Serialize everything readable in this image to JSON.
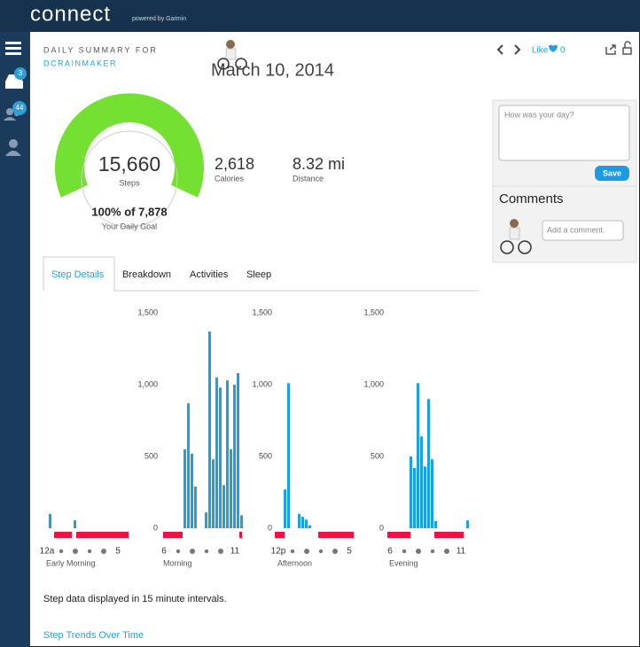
{
  "header": {
    "logo": "connect",
    "tagline": "powered by Garmin"
  },
  "sidebar": {
    "badges": [
      "3",
      "44"
    ]
  },
  "summary": {
    "label": "DAILY SUMMARY FOR",
    "user": "DCRAINMAKER",
    "date": "March 10, 2014",
    "like": "Like",
    "like_count": "0"
  },
  "steps": {
    "value": "15,660",
    "label": "Steps",
    "goal": "100% of 7,878",
    "goal_label": "Your Daily Goal"
  },
  "stats": [
    {
      "value": "2,618",
      "label": "Calories"
    },
    {
      "value": "8.32 mi",
      "label": "Distance"
    }
  ],
  "comment_box": {
    "placeholder": "How was your day?",
    "button": "Save",
    "heading": "Comments",
    "input_placeholder": "Add a comment."
  },
  "tabs": [
    "Step Details",
    "Breakdown",
    "Activities",
    "Sleep"
  ],
  "chart_data": [
    {
      "type": "bar",
      "xlabel": "Early Morning",
      "color": "#1ea0e0",
      "ylim": [
        0,
        1500
      ],
      "categories": [
        "12a",
        null,
        null,
        null,
        null,
        null,
        null,
        null,
        null,
        null,
        null,
        null,
        null,
        null,
        null,
        null,
        null,
        null,
        null,
        null,
        "5",
        null,
        null,
        null
      ],
      "values": [
        0,
        100,
        0,
        0,
        0,
        0,
        0,
        0,
        55,
        0,
        0,
        0,
        0,
        0,
        0,
        0,
        0,
        0,
        0,
        0,
        0,
        0,
        0,
        0
      ]
    },
    {
      "type": "bar",
      "xlabel": "Morning",
      "color": "#1ea0e0",
      "ylim": [
        0,
        1500
      ],
      "yticks": [
        0,
        500,
        {
          "value": 1000,
          "label": "1,000"
        },
        {
          "value": 1500,
          "label": "1,500"
        }
      ],
      "categories": [
        "6",
        null,
        null,
        null,
        null,
        null,
        null,
        null,
        null,
        null,
        null,
        null,
        null,
        null,
        null,
        null,
        null,
        null,
        null,
        null,
        "11",
        null,
        null,
        null
      ],
      "values": [
        0,
        0,
        0,
        0,
        0,
        0,
        550,
        870,
        520,
        290,
        0,
        0,
        110,
        1370,
        480,
        1050,
        980,
        300,
        1030,
        550,
        1000,
        1080,
        90,
        0
      ]
    },
    {
      "type": "bar",
      "xlabel": "Afternoon",
      "color": "#1ea0e0",
      "ylim": [
        0,
        1500
      ],
      "yticks": [
        0,
        500,
        {
          "value": 1000,
          "label": "1,000"
        },
        {
          "value": 1500,
          "label": "1,500"
        }
      ],
      "categories": [
        "12p",
        null,
        null,
        null,
        null,
        null,
        null,
        null,
        null,
        null,
        null,
        null,
        null,
        null,
        null,
        null,
        null,
        null,
        null,
        null,
        "5",
        null,
        null,
        null
      ],
      "values": [
        0,
        0,
        270,
        1010,
        0,
        0,
        100,
        80,
        60,
        20,
        0,
        0,
        0,
        0,
        0,
        0,
        0,
        0,
        0,
        0,
        0,
        0,
        0,
        0
      ]
    },
    {
      "type": "bar",
      "xlabel": "Evening",
      "color": "#1ea0e0",
      "ylim": [
        0,
        1500
      ],
      "yticks": [
        0,
        500,
        {
          "value": 1000,
          "label": "1,000"
        },
        {
          "value": 1500,
          "label": "1,500"
        }
      ],
      "categories": [
        "6",
        null,
        null,
        null,
        null,
        null,
        null,
        null,
        null,
        null,
        null,
        null,
        null,
        null,
        null,
        null,
        null,
        null,
        null,
        null,
        "11",
        null,
        null,
        null
      ],
      "values": [
        0,
        0,
        0,
        0,
        0,
        0,
        500,
        420,
        1010,
        640,
        430,
        900,
        480,
        50,
        0,
        0,
        0,
        0,
        0,
        0,
        0,
        0,
        55,
        0
      ]
    }
  ],
  "footer": {
    "note": "Step data displayed in 15 minute intervals.",
    "link": "Step Trends Over Time"
  }
}
